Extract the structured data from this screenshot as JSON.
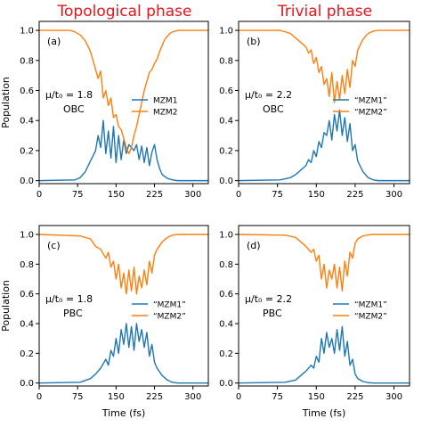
{
  "columns": [
    "Topological phase",
    "Trivial phase"
  ],
  "colors": {
    "mzm1": "#1f77b4",
    "mzm2": "#ff7f0e",
    "title": "#e8141b"
  },
  "chart_data": [
    {
      "type": "line",
      "panel": "(a)",
      "mu_label": "μ/t₀ = 1.8",
      "bc": "OBC",
      "xlabel": "",
      "ylabel": "Population",
      "xlim": [
        0,
        330
      ],
      "ylim": [
        -0.02,
        1.06
      ],
      "xticks": [
        "0",
        "75",
        "150",
        "225",
        "300"
      ],
      "yticks": [
        "0.0",
        "0.2",
        "0.4",
        "0.6",
        "0.8",
        "1.0"
      ],
      "legend": [
        "MZM1",
        "MZM2"
      ],
      "legend_loc": "center-right",
      "series": [
        {
          "name": "MZM1",
          "x": [
            0,
            70,
            80,
            90,
            100,
            110,
            115,
            120,
            125,
            130,
            135,
            140,
            145,
            150,
            155,
            160,
            165,
            170,
            175,
            180,
            185,
            190,
            195,
            200,
            205,
            210,
            215,
            220,
            225,
            230,
            235,
            240,
            250,
            260,
            270,
            300,
            330
          ],
          "y": [
            0,
            0.005,
            0.02,
            0.06,
            0.13,
            0.2,
            0.3,
            0.22,
            0.4,
            0.18,
            0.33,
            0.15,
            0.36,
            0.12,
            0.3,
            0.14,
            0.27,
            0.18,
            0.24,
            0.22,
            0.2,
            0.24,
            0.14,
            0.23,
            0.12,
            0.22,
            0.1,
            0.19,
            0.24,
            0.14,
            0.08,
            0.04,
            0.015,
            0.005,
            0,
            0,
            0
          ]
        },
        {
          "name": "MZM2",
          "x": [
            0,
            60,
            70,
            80,
            90,
            100,
            105,
            110,
            115,
            120,
            125,
            130,
            135,
            140,
            145,
            150,
            155,
            160,
            165,
            170,
            175,
            180,
            185,
            190,
            195,
            200,
            205,
            210,
            215,
            220,
            225,
            230,
            235,
            240,
            245,
            250,
            255,
            260,
            270,
            280,
            300,
            330
          ],
          "y": [
            1.0,
            1.0,
            0.99,
            0.97,
            0.93,
            0.86,
            0.8,
            0.74,
            0.68,
            0.73,
            0.55,
            0.6,
            0.5,
            0.55,
            0.42,
            0.44,
            0.36,
            0.34,
            0.28,
            0.22,
            0.18,
            0.22,
            0.3,
            0.36,
            0.44,
            0.52,
            0.6,
            0.66,
            0.72,
            0.74,
            0.78,
            0.81,
            0.86,
            0.9,
            0.94,
            0.96,
            0.98,
            0.99,
            1.0,
            1.0,
            1.0,
            1.0
          ]
        }
      ]
    },
    {
      "type": "line",
      "panel": "(b)",
      "mu_label": "μ/t₀ = 2.2",
      "bc": "OBC",
      "xlabel": "",
      "ylabel": "",
      "xlim": [
        0,
        330
      ],
      "ylim": [
        -0.02,
        1.06
      ],
      "xticks": [
        "0",
        "75",
        "150",
        "225",
        "300"
      ],
      "yticks": [
        "0.0",
        "0.2",
        "0.4",
        "0.6",
        "0.8",
        "1.0"
      ],
      "legend": [
        "“MZM1”",
        "“MZM2”"
      ],
      "legend_loc": "center-right",
      "series": [
        {
          "name": "“MZM1”",
          "x": [
            0,
            80,
            100,
            110,
            120,
            130,
            135,
            140,
            145,
            150,
            155,
            160,
            165,
            170,
            175,
            180,
            185,
            190,
            195,
            200,
            205,
            210,
            215,
            220,
            225,
            230,
            240,
            250,
            260,
            270,
            300,
            330
          ],
          "y": [
            0,
            0.005,
            0.02,
            0.04,
            0.07,
            0.1,
            0.14,
            0.12,
            0.2,
            0.16,
            0.26,
            0.22,
            0.32,
            0.3,
            0.4,
            0.27,
            0.44,
            0.33,
            0.47,
            0.3,
            0.42,
            0.26,
            0.38,
            0.2,
            0.24,
            0.13,
            0.06,
            0.02,
            0.005,
            0,
            0,
            0
          ]
        },
        {
          "name": "“MZM2”",
          "x": [
            0,
            80,
            100,
            110,
            120,
            130,
            135,
            140,
            145,
            150,
            155,
            160,
            165,
            170,
            175,
            180,
            185,
            190,
            195,
            200,
            205,
            210,
            215,
            220,
            225,
            230,
            240,
            250,
            260,
            270,
            300,
            330
          ],
          "y": [
            1.0,
            1.0,
            0.98,
            0.95,
            0.92,
            0.89,
            0.85,
            0.87,
            0.78,
            0.82,
            0.72,
            0.76,
            0.64,
            0.68,
            0.56,
            0.72,
            0.52,
            0.66,
            0.54,
            0.7,
            0.58,
            0.74,
            0.62,
            0.8,
            0.76,
            0.87,
            0.94,
            0.98,
            0.995,
            1.0,
            1.0,
            1.0
          ]
        }
      ]
    },
    {
      "type": "line",
      "panel": "(c)",
      "mu_label": "μ/t₀ = 1.8",
      "bc": "PBC",
      "xlabel": "Time (fs)",
      "ylabel": "Population",
      "xlim": [
        0,
        330
      ],
      "ylim": [
        -0.02,
        1.06
      ],
      "xticks": [
        "0",
        "75",
        "150",
        "225",
        "300"
      ],
      "yticks": [
        "0.0",
        "0.2",
        "0.4",
        "0.6",
        "0.8",
        "1.0"
      ],
      "legend": [
        "“MZM1”",
        "“MZM2”"
      ],
      "legend_loc": "center-right",
      "series": [
        {
          "name": "“MZM1”",
          "x": [
            0,
            80,
            100,
            110,
            120,
            130,
            135,
            140,
            145,
            150,
            155,
            160,
            165,
            170,
            175,
            180,
            185,
            190,
            195,
            200,
            205,
            210,
            215,
            220,
            225,
            230,
            240,
            250,
            260,
            270,
            300,
            330
          ],
          "y": [
            0,
            0.005,
            0.03,
            0.06,
            0.1,
            0.16,
            0.12,
            0.22,
            0.18,
            0.3,
            0.2,
            0.36,
            0.26,
            0.4,
            0.24,
            0.38,
            0.22,
            0.4,
            0.28,
            0.36,
            0.24,
            0.34,
            0.18,
            0.26,
            0.14,
            0.1,
            0.05,
            0.02,
            0.005,
            0,
            0,
            0
          ]
        },
        {
          "name": "“MZM2”",
          "x": [
            0,
            80,
            100,
            110,
            120,
            130,
            135,
            140,
            145,
            150,
            155,
            160,
            165,
            170,
            175,
            180,
            185,
            190,
            195,
            200,
            205,
            210,
            215,
            220,
            225,
            230,
            240,
            250,
            260,
            270,
            300,
            330
          ],
          "y": [
            1.0,
            0.99,
            0.97,
            0.92,
            0.9,
            0.84,
            0.88,
            0.78,
            0.82,
            0.7,
            0.8,
            0.64,
            0.74,
            0.6,
            0.76,
            0.62,
            0.78,
            0.6,
            0.72,
            0.64,
            0.76,
            0.66,
            0.82,
            0.74,
            0.86,
            0.9,
            0.95,
            0.98,
            0.995,
            1.0,
            1.0,
            1.0
          ]
        }
      ]
    },
    {
      "type": "line",
      "panel": "(d)",
      "mu_label": "μ/t₀ = 2.2",
      "bc": "PBC",
      "xlabel": "Time (fs)",
      "ylabel": "",
      "xlim": [
        0,
        330
      ],
      "ylim": [
        -0.02,
        1.06
      ],
      "xticks": [
        "0",
        "75",
        "150",
        "225",
        "300"
      ],
      "yticks": [
        "0.0",
        "0.2",
        "0.4",
        "0.6",
        "0.8",
        "1.0"
      ],
      "legend": [
        "“MZM1”",
        "“MZM2”"
      ],
      "legend_loc": "center-right",
      "series": [
        {
          "name": "“MZM1”",
          "x": [
            0,
            90,
            110,
            120,
            130,
            140,
            145,
            150,
            155,
            160,
            165,
            170,
            175,
            180,
            185,
            190,
            195,
            200,
            205,
            210,
            215,
            220,
            225,
            230,
            240,
            250,
            260,
            300,
            330
          ],
          "y": [
            0,
            0.005,
            0.02,
            0.05,
            0.08,
            0.12,
            0.1,
            0.18,
            0.14,
            0.3,
            0.2,
            0.34,
            0.24,
            0.3,
            0.2,
            0.36,
            0.22,
            0.38,
            0.18,
            0.28,
            0.12,
            0.16,
            0.06,
            0.03,
            0.01,
            0.003,
            0,
            0,
            0
          ]
        },
        {
          "name": "“MZM2”",
          "x": [
            0,
            90,
            110,
            120,
            130,
            140,
            145,
            150,
            155,
            160,
            165,
            170,
            175,
            180,
            185,
            190,
            195,
            200,
            205,
            210,
            215,
            220,
            225,
            230,
            240,
            250,
            260,
            300,
            330
          ],
          "y": [
            1.0,
            0.995,
            0.98,
            0.95,
            0.92,
            0.88,
            0.9,
            0.82,
            0.86,
            0.7,
            0.8,
            0.64,
            0.76,
            0.7,
            0.8,
            0.64,
            0.78,
            0.62,
            0.82,
            0.72,
            0.88,
            0.84,
            0.94,
            0.97,
            0.99,
            0.997,
            1.0,
            1.0,
            1.0
          ]
        }
      ]
    }
  ]
}
